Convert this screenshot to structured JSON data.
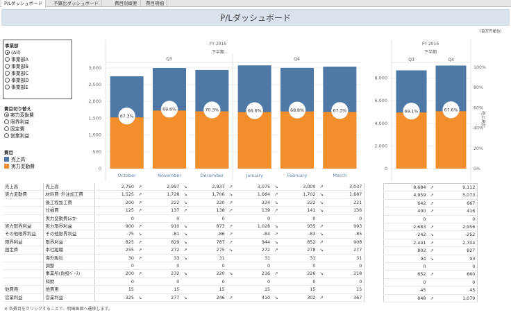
{
  "tabs": [
    "P/Lダッシュボード",
    "予算比ダッシュボード",
    "費目別概要",
    "費目明細"
  ],
  "title": "P/Lダッシュボード",
  "unit_note": "（百万円単位）",
  "filters": {
    "dept_title": "事業部",
    "depts": [
      "(All)",
      "事業部A",
      "事業部B",
      "事業部C",
      "事業部D",
      "事業部E"
    ],
    "switch_title": "費目切り替え",
    "switch_options": [
      "実力変動費",
      "限界利益",
      "固定費",
      "営業利益"
    ],
    "legend_title": "費目",
    "legend": [
      {
        "label": "売上高",
        "color": "#4e79a7"
      },
      {
        "label": "実力変動費",
        "color": "#f28e2b"
      }
    ]
  },
  "chart_data": [
    {
      "type": "bar",
      "header_top": "FY 2015",
      "header_mid": "下半期",
      "quarters": [
        "Q3",
        "Q4"
      ],
      "categories": [
        "October",
        "November",
        "December",
        "January",
        "February",
        "March"
      ],
      "series": [
        {
          "name": "売上高",
          "values": [
            2750,
            2997,
            2937,
            3075,
            3000,
            3037
          ]
        },
        {
          "name": "実力変動費",
          "values": [
            1525,
            1728,
            1706,
            1684,
            1702,
            1687
          ]
        }
      ],
      "labels": [
        "67.3%",
        "69.6%",
        "70.3%",
        "66.6%",
        "68.8%",
        "67.3%"
      ],
      "yticks": [
        "0",
        "500",
        "1,000",
        "1,500",
        "2,000",
        "2,500",
        "3,000"
      ],
      "ylim": [
        0,
        3100
      ]
    },
    {
      "type": "bar",
      "header_top": "FY 2015",
      "header_mid": "下半期",
      "categories": [
        "Q3",
        "Q4"
      ],
      "series": [
        {
          "name": "売上高",
          "values": [
            8684,
            9112
          ]
        },
        {
          "name": "実力変動費",
          "values": [
            4959,
            5073
          ]
        }
      ],
      "labels": [
        "69.1%",
        "67.6%"
      ],
      "yticks": [
        "0",
        "2,000",
        "4,000",
        "6,000",
        "8,000"
      ],
      "ylim": [
        0,
        9200
      ],
      "right_ticks": [
        "0%",
        "20%",
        "40%",
        "60%",
        "80%",
        "100%"
      ],
      "right_label": "売上高比"
    }
  ],
  "table": {
    "rows": [
      {
        "g": "売上高",
        "n": "売上高",
        "m": [
          "2,750",
          "2,997",
          "2,937",
          "3,075",
          "3,000",
          "3,037"
        ],
        "a": [
          "↗",
          "↘",
          "↗",
          "↘",
          "↗"
        ],
        "q": [
          "8,684",
          "9,112"
        ],
        "qa": "↗"
      },
      {
        "g": "実力変動費",
        "n": "材料費･外注加工費",
        "m": [
          "1,525",
          "1,728",
          "1,706",
          "1,684",
          "1,702",
          "1,687"
        ],
        "a": [
          "↗",
          "↘",
          "↘",
          "↗",
          "↘"
        ],
        "q": [
          "4,959",
          "5,073"
        ],
        "qa": "↗"
      },
      {
        "g": "",
        "n": "後工程加工費",
        "m": [
          "200",
          "222",
          "220",
          "224",
          "222",
          "221"
        ],
        "a": [
          "↗",
          "↘",
          "↗",
          "↘",
          "↘"
        ],
        "q": [
          "642",
          "667"
        ],
        "qa": "↗"
      },
      {
        "g": "",
        "n": "仕損費",
        "m": [
          "125",
          "137",
          "138",
          "139",
          "141",
          "136"
        ],
        "a": [
          "↗",
          "↗",
          "↗",
          "↗",
          "↘"
        ],
        "q": [
          "400",
          "416"
        ],
        "qa": "↗"
      },
      {
        "g": "",
        "n": "実力変動費ほか",
        "m": [
          "0",
          "0",
          "0",
          "0",
          "0",
          "0"
        ],
        "a": [
          "",
          "",
          "",
          "",
          ""
        ],
        "q": [
          "0",
          "0"
        ],
        "qa": ""
      },
      {
        "g": "実力限界利益",
        "n": "実力限界利益",
        "m": [
          "900",
          "910",
          "873",
          "1,028",
          "935",
          "993"
        ],
        "a": [
          "↗",
          "↘",
          "↗",
          "↘",
          "↗"
        ],
        "q": [
          "2,683",
          "2,956"
        ],
        "qa": "↗"
      },
      {
        "g": "その他限界利益",
        "n": "その他限界利益",
        "m": [
          "-75",
          "-81",
          "-86",
          "-84",
          "-83",
          "-85"
        ],
        "a": [
          "↘",
          "↘",
          "↗",
          "↗",
          "↘"
        ],
        "q": [
          "-242",
          "-252"
        ],
        "qa": "↘"
      },
      {
        "g": "限界利益",
        "n": "限界利益",
        "m": [
          "825",
          "829",
          "787",
          "944",
          "852",
          "908"
        ],
        "a": [
          "↗",
          "↘",
          "↗",
          "↘",
          "↗"
        ],
        "q": [
          "2,441",
          "2,704"
        ],
        "qa": "↗"
      },
      {
        "g": "固定費",
        "n": "本社組織",
        "m": [
          "255",
          "272",
          "275",
          "272",
          "278",
          "277"
        ],
        "a": [
          "↗",
          "↗",
          "↘",
          "↗",
          "↘"
        ],
        "q": [
          "802",
          "827"
        ],
        "qa": "↗"
      },
      {
        "g": "",
        "n": "海外販社",
        "m": [
          "30",
          "33",
          "31",
          "31",
          "31",
          "31"
        ],
        "a": [
          "↗",
          "↘",
          "",
          "",
          ""
        ],
        "q": [
          "94",
          "93"
        ],
        "qa": "↘"
      },
      {
        "g": "",
        "n": "調整",
        "m": [
          "0",
          "0",
          "0",
          "0",
          "0",
          "0"
        ],
        "a": [
          "",
          "",
          "",
          "",
          ""
        ],
        "q": [
          "0",
          "0"
        ],
        "qa": ""
      },
      {
        "g": "",
        "n": "事業所(負担ﾍﾞｰｽ)",
        "m": [
          "200",
          "232",
          "220",
          "216",
          "226",
          "218"
        ],
        "a": [
          "↗",
          "↘",
          "↘",
          "↗",
          "↘"
        ],
        "q": [
          "652",
          "660"
        ],
        "qa": "↗"
      },
      {
        "g": "",
        "n": "知財",
        "m": [
          "0",
          "0",
          "0",
          "0",
          "0",
          "0"
        ],
        "a": [
          "",
          "",
          "",
          "",
          ""
        ],
        "q": [
          "0",
          "0"
        ],
        "qa": ""
      },
      {
        "g": "他費用",
        "n": "他費用",
        "m": [
          "15",
          "15",
          "15",
          "15",
          "15",
          "15"
        ],
        "a": [
          "",
          "",
          "",
          "",
          ""
        ],
        "q": [
          "45",
          "45"
        ],
        "qa": ""
      },
      {
        "g": "営業利益",
        "n": "営業利益",
        "m": [
          "325",
          "277",
          "246",
          "410",
          "302",
          "367"
        ],
        "a": [
          "↘",
          "↘",
          "↗",
          "↘",
          "↗"
        ],
        "q": [
          "848",
          "1,079"
        ],
        "qa": "↗"
      }
    ]
  },
  "footnote": "※ 各費目をクリックすることで、明細画面へ遷移します。"
}
